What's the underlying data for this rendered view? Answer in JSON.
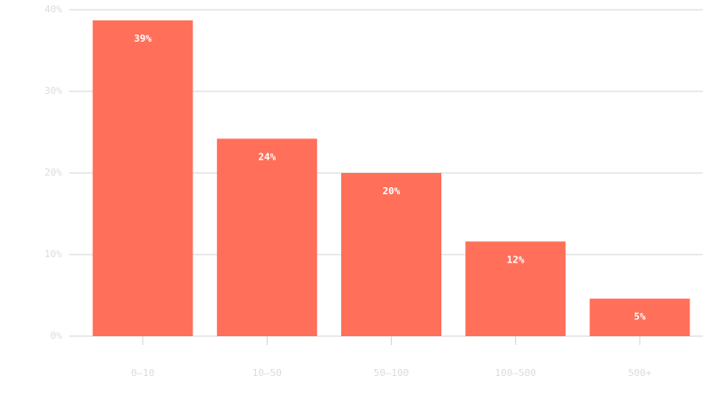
{
  "chart_data": {
    "type": "bar",
    "categories": [
      "0–10",
      "10–50",
      "50–100",
      "100–500",
      "500+"
    ],
    "values": [
      38.7,
      24.2,
      20,
      11.6,
      4.6
    ],
    "value_labels": [
      "39%",
      "24%",
      "20%",
      "12%",
      "5%"
    ],
    "color": "#ff6f59",
    "ylim": [
      0,
      40
    ],
    "yticks": [
      {
        "value": 0,
        "label": "0%"
      },
      {
        "value": 10,
        "label": "10%"
      },
      {
        "value": 20,
        "label": "20%"
      },
      {
        "value": 30,
        "label": "30%"
      },
      {
        "value": 40,
        "label": "40%"
      }
    ],
    "grid": true
  }
}
